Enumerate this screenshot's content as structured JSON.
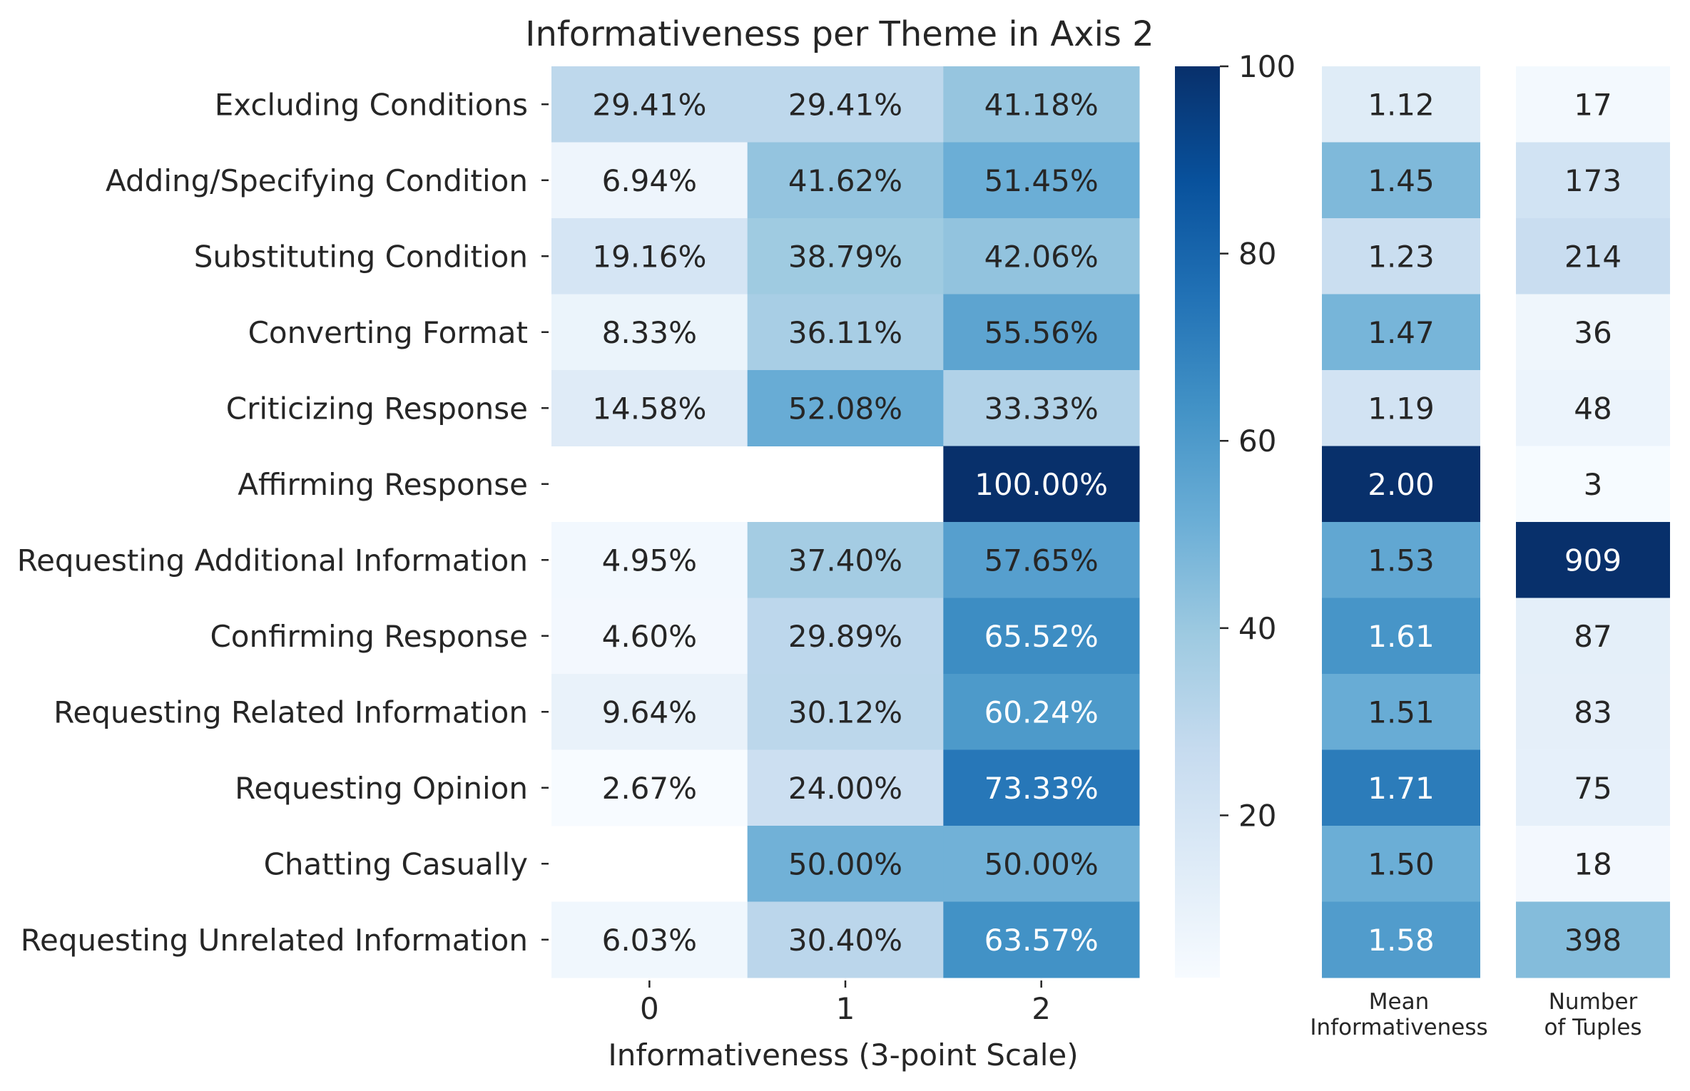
{
  "chart_data": {
    "type": "heatmap",
    "title": "Informativeness per Theme in Axis 2",
    "xlabel": "Informativeness (3-point Scale)",
    "ylabel": "",
    "rows": [
      "Excluding Conditions",
      "Adding/Specifying Condition",
      "Substituting Condition",
      "Converting Format",
      "Criticizing Response",
      "Affirming Response",
      "Requesting Additional Information",
      "Confirming Response",
      "Requesting Related Information",
      "Requesting Opinion",
      "Chatting Casually",
      "Requesting Unrelated Information"
    ],
    "columns": [
      "0",
      "1",
      "2"
    ],
    "values": [
      [
        29.41,
        29.41,
        41.18
      ],
      [
        6.94,
        41.62,
        51.45
      ],
      [
        19.16,
        38.79,
        42.06
      ],
      [
        8.33,
        36.11,
        55.56
      ],
      [
        14.58,
        52.08,
        33.33
      ],
      [
        null,
        null,
        100.0
      ],
      [
        4.95,
        37.4,
        57.65
      ],
      [
        4.6,
        29.89,
        65.52
      ],
      [
        9.64,
        30.12,
        60.24
      ],
      [
        2.67,
        24.0,
        73.33
      ],
      [
        null,
        50.0,
        50.0
      ],
      [
        6.03,
        30.4,
        63.57
      ]
    ],
    "value_labels": [
      [
        "29.41%",
        "29.41%",
        "41.18%"
      ],
      [
        "6.94%",
        "41.62%",
        "51.45%"
      ],
      [
        "19.16%",
        "38.79%",
        "42.06%"
      ],
      [
        "8.33%",
        "36.11%",
        "55.56%"
      ],
      [
        "14.58%",
        "52.08%",
        "33.33%"
      ],
      [
        "",
        "",
        "100.00%"
      ],
      [
        "4.95%",
        "37.40%",
        "57.65%"
      ],
      [
        "4.60%",
        "29.89%",
        "65.52%"
      ],
      [
        "9.64%",
        "30.12%",
        "60.24%"
      ],
      [
        "2.67%",
        "24.00%",
        "73.33%"
      ],
      [
        "",
        "50.00%",
        "50.00%"
      ],
      [
        "6.03%",
        "30.40%",
        "63.57%"
      ]
    ],
    "colorbar": {
      "colormap": "Blues",
      "min": 2.67,
      "max": 100,
      "ticks": [
        20,
        40,
        60,
        80,
        100
      ],
      "tick_labels": [
        "20",
        "40",
        "60",
        "80",
        "100"
      ]
    },
    "mean_informativeness": {
      "header": [
        "Mean",
        "Informativeness"
      ],
      "values": [
        1.12,
        1.45,
        1.23,
        1.47,
        1.19,
        2.0,
        1.53,
        1.61,
        1.51,
        1.71,
        1.5,
        1.58
      ],
      "labels": [
        "1.12",
        "1.45",
        "1.23",
        "1.47",
        "1.19",
        "2.00",
        "1.53",
        "1.61",
        "1.51",
        "1.71",
        "1.50",
        "1.58"
      ],
      "color_range": [
        1.0,
        2.0
      ]
    },
    "number_of_tuples": {
      "header": [
        "Number",
        "of Tuples"
      ],
      "values": [
        17,
        173,
        214,
        36,
        48,
        3,
        909,
        87,
        83,
        75,
        18,
        398
      ],
      "labels": [
        "17",
        "173",
        "214",
        "36",
        "48",
        "3",
        "909",
        "87",
        "83",
        "75",
        "18",
        "398"
      ],
      "color_range": [
        0,
        909
      ]
    }
  }
}
